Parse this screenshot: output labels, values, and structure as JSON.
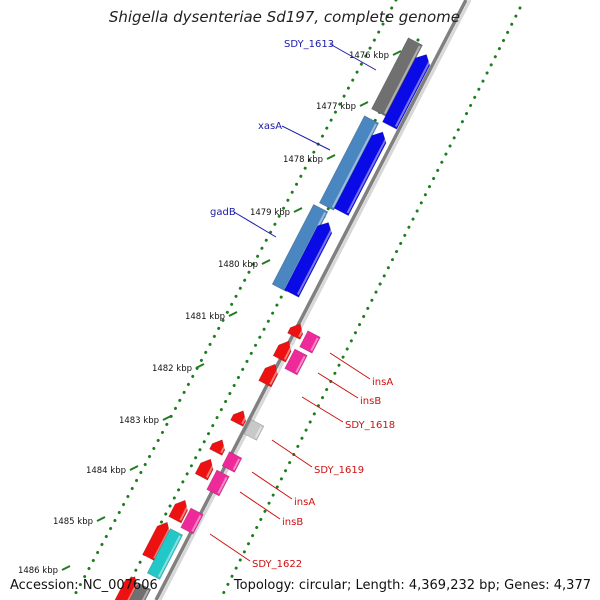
{
  "header": {
    "title": "Shigella dysenteriae Sd197, complete genome"
  },
  "footer": {
    "accession": "Accession: NC_007606",
    "summary": "Topology: circular; Length: 4,369,232 bp; Genes: 4,377"
  },
  "ticks": [
    "1476 kbp",
    "1477 kbp",
    "1478 kbp",
    "1479 kbp",
    "1480 kbp",
    "1481 kbp",
    "1482 kbp",
    "1483 kbp",
    "1484 kbp",
    "1485 kbp",
    "1486 kbp"
  ],
  "gene_labels": [
    {
      "text": "SDY_1613",
      "color": "#1a1aa8",
      "side": "left"
    },
    {
      "text": "xasA",
      "color": "#1a1aa8",
      "side": "left"
    },
    {
      "text": "gadB",
      "color": "#1a1aa8",
      "side": "left"
    },
    {
      "text": "insA",
      "color": "#cc1111",
      "side": "right"
    },
    {
      "text": "insB",
      "color": "#cc1111",
      "side": "right"
    },
    {
      "text": "SDY_1618",
      "color": "#cc1111",
      "side": "right"
    },
    {
      "text": "SDY_1619",
      "color": "#cc1111",
      "side": "right"
    },
    {
      "text": "insA",
      "color": "#cc1111",
      "side": "right"
    },
    {
      "text": "insB",
      "color": "#cc1111",
      "side": "right"
    },
    {
      "text": "SDY_1622",
      "color": "#cc1111",
      "side": "right"
    }
  ],
  "colors": {
    "backbone": "#808080",
    "dotted_track": "#1e7d1e",
    "gene_gray": "#707070",
    "gene_blue": "#0a0ae6",
    "gene_steelblue": "#4a86c0",
    "gene_red": "#ee1111",
    "gene_pink": "#ee2a9a",
    "gene_lightgray": "#c8c8c8",
    "gene_cyan": "#22c8c8"
  }
}
